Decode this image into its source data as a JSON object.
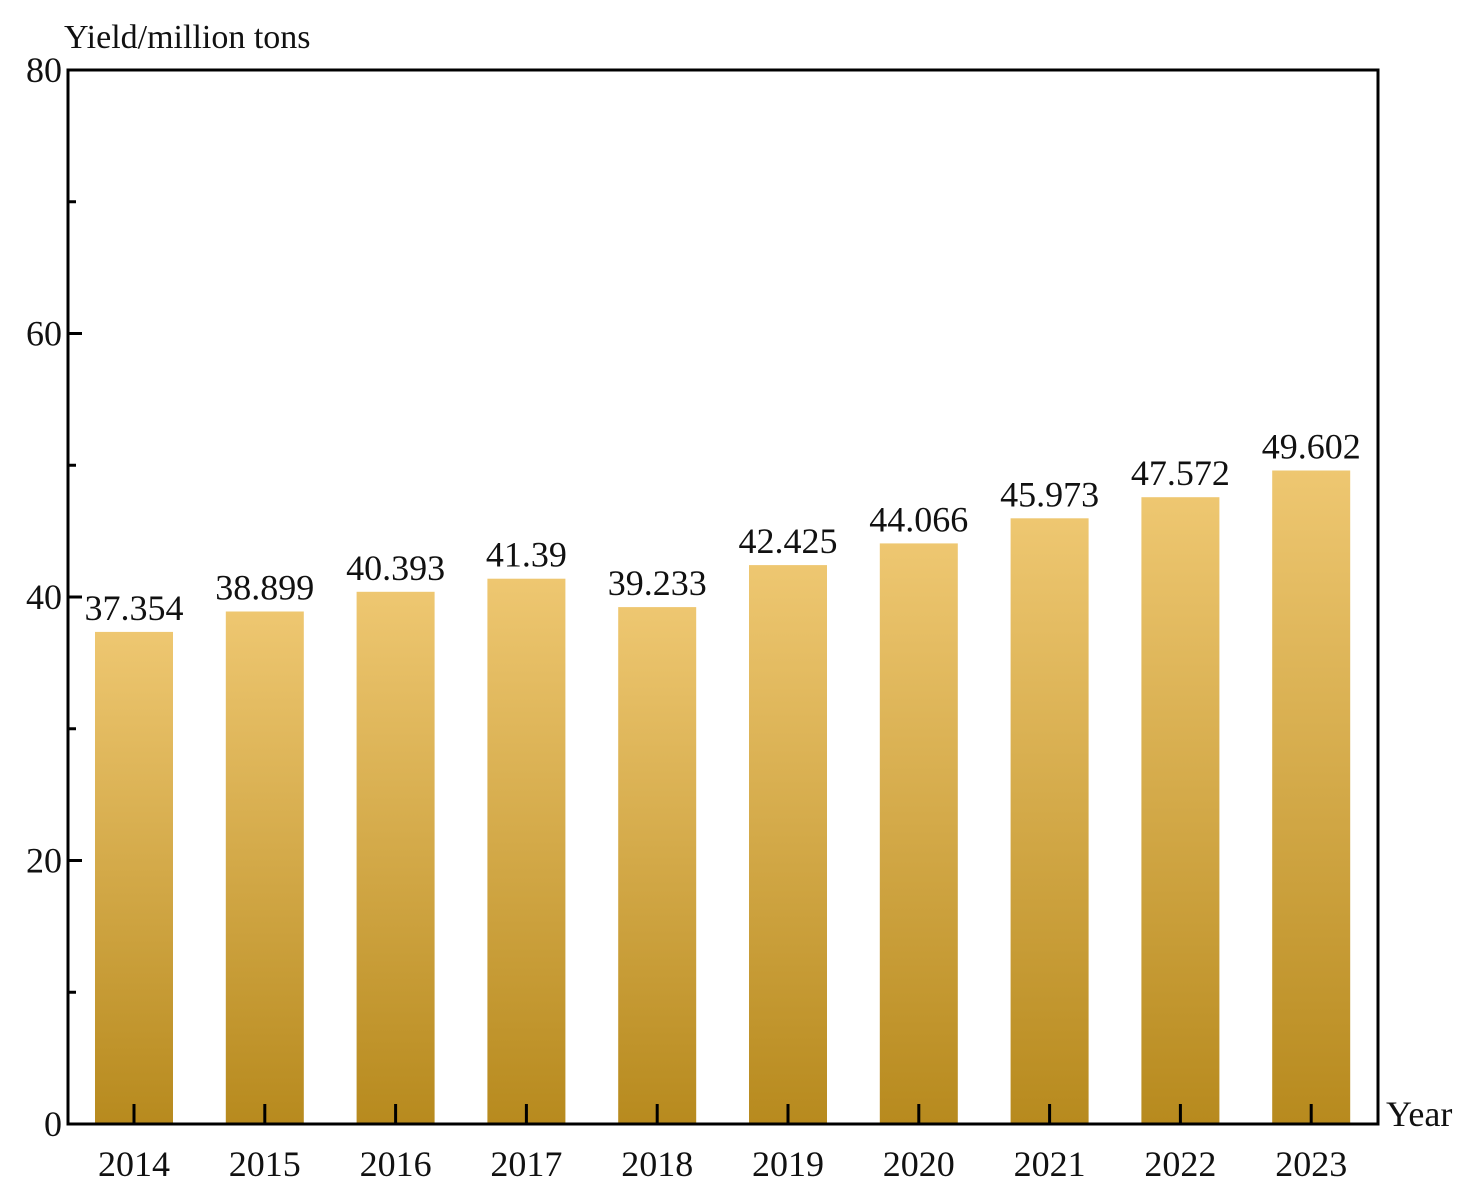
{
  "chart_data": {
    "type": "bar",
    "title": "",
    "ylabel": "Yield/million tons",
    "xlabel": "Year",
    "categories": [
      "2014",
      "2015",
      "2016",
      "2017",
      "2018",
      "2019",
      "2020",
      "2021",
      "2022",
      "2023"
    ],
    "values": [
      37.354,
      38.899,
      40.393,
      41.39,
      39.233,
      42.425,
      44.066,
      45.973,
      47.572,
      49.602
    ],
    "value_labels": [
      "37.354",
      "38.899",
      "40.393",
      "41.39",
      "39.233",
      "42.425",
      "44.066",
      "45.973",
      "47.572",
      "49.602"
    ],
    "ylim": [
      0,
      80
    ],
    "yticks": [
      "0",
      "20",
      "40",
      "60",
      "80"
    ],
    "y_minor_step": 10,
    "grid": false,
    "legend": "none",
    "colors": {
      "bar_top": "#EEC771",
      "bar_bottom": "#B78A1E",
      "axis": "#000000"
    }
  }
}
